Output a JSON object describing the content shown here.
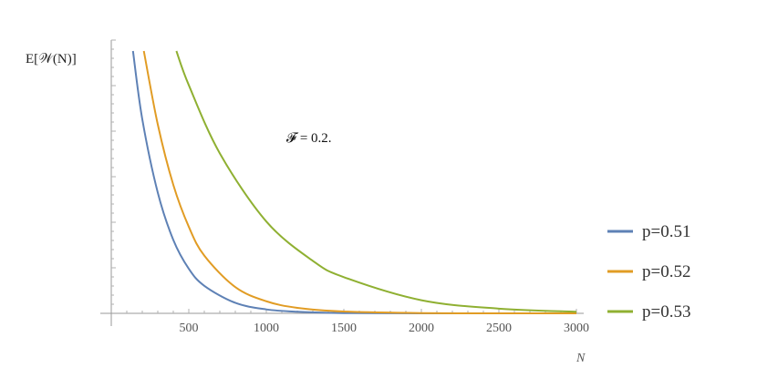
{
  "chart_data": {
    "type": "line",
    "title": "",
    "xlabel": "N",
    "ylabel": "E[𝒲(N)]",
    "annotation": "𝓕 = 0.2.",
    "xlim": [
      0,
      3000
    ],
    "ylim": [
      0,
      1
    ],
    "x_ticks": [
      500,
      1000,
      1500,
      2000,
      2500,
      3000
    ],
    "x_tick_labels": [
      "500",
      "1000",
      "1500",
      "2000",
      "2500",
      "3000"
    ],
    "grid": false,
    "legend_position": "right",
    "series": [
      {
        "name": "p=0.51",
        "color": "#5e81b5",
        "x": [
          140,
          200,
          300,
          400,
          500,
          600,
          800,
          1000,
          1200,
          1500,
          2000,
          3000
        ],
        "y": [
          1.0,
          0.74,
          0.46,
          0.28,
          0.17,
          0.105,
          0.04,
          0.015,
          0.006,
          0.001,
          0.0,
          0.0
        ]
      },
      {
        "name": "p=0.52",
        "color": "#e19c24",
        "x": [
          210,
          300,
          400,
          500,
          600,
          800,
          1000,
          1200,
          1500,
          2000,
          2500,
          3000
        ],
        "y": [
          1.0,
          0.72,
          0.49,
          0.33,
          0.22,
          0.1,
          0.046,
          0.021,
          0.007,
          0.001,
          0.0,
          0.0
        ]
      },
      {
        "name": "p=0.53",
        "color": "#8fb032",
        "x": [
          420,
          500,
          700,
          1000,
          1300,
          1500,
          2000,
          2500,
          3000
        ],
        "y": [
          1.0,
          0.87,
          0.61,
          0.35,
          0.2,
          0.138,
          0.05,
          0.018,
          0.006
        ]
      }
    ]
  }
}
